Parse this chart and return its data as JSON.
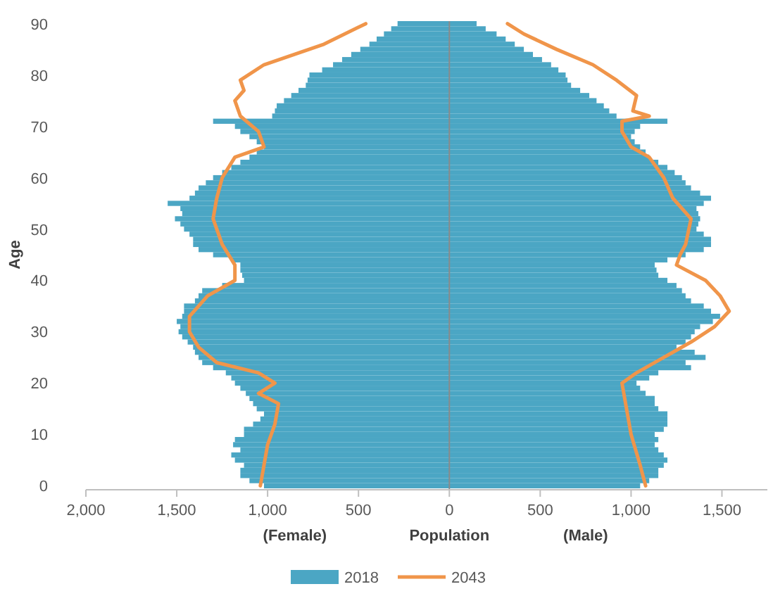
{
  "chart_data": {
    "type": "bar",
    "orientation": "horizontal",
    "ylabel": "Age",
    "xlabel": "Population",
    "annotations": [
      "(Female)",
      "(Male)"
    ],
    "x": [
      0,
      1,
      2,
      3,
      4,
      5,
      6,
      7,
      8,
      9,
      10,
      11,
      12,
      13,
      14,
      15,
      16,
      17,
      18,
      19,
      20,
      21,
      22,
      23,
      24,
      25,
      26,
      27,
      28,
      29,
      30,
      31,
      32,
      33,
      34,
      35,
      36,
      37,
      38,
      39,
      40,
      41,
      42,
      43,
      44,
      45,
      46,
      47,
      48,
      49,
      50,
      51,
      52,
      53,
      54,
      55,
      56,
      57,
      58,
      59,
      60,
      61,
      62,
      63,
      64,
      65,
      66,
      67,
      68,
      69,
      70,
      71,
      72,
      73,
      74,
      75,
      76,
      77,
      78,
      79,
      80,
      81,
      82,
      83,
      84,
      85,
      86,
      87,
      88,
      89,
      90
    ],
    "series": [
      {
        "name": "2018",
        "color": "#4ba6c4",
        "values": [
          -1020,
          -1100,
          -1150,
          -1150,
          -1130,
          -1180,
          -1200,
          -1150,
          -1190,
          -1180,
          -1130,
          -1130,
          -1080,
          -1040,
          -1020,
          -1060,
          -1080,
          -1100,
          -1120,
          -1150,
          -1180,
          -1200,
          -1230,
          -1300,
          -1360,
          -1380,
          -1400,
          -1410,
          -1440,
          -1470,
          -1490,
          -1480,
          -1500,
          -1470,
          -1460,
          -1460,
          -1400,
          -1380,
          -1360,
          -1250,
          -1130,
          -1140,
          -1150,
          -1150,
          -1200,
          -1300,
          -1380,
          -1410,
          -1410,
          -1430,
          -1460,
          -1480,
          -1510,
          -1470,
          -1480,
          -1550,
          -1430,
          -1400,
          -1380,
          -1340,
          -1300,
          -1250,
          -1200,
          -1150,
          -1100,
          -1060,
          -1020,
          -1060,
          -1100,
          -1150,
          -1180,
          -1300,
          -975,
          -960,
          -950,
          -910,
          -870,
          -830,
          -790,
          -780,
          -770,
          -700,
          -640,
          -590,
          -540,
          -490,
          -440,
          -400,
          -360,
          -320,
          -285
        ]
      },
      {
        "color": "#4ba6c4",
        "values": [
          1050,
          1100,
          1150,
          1150,
          1180,
          1200,
          1180,
          1150,
          1130,
          1150,
          1130,
          1180,
          1200,
          1200,
          1200,
          1150,
          1130,
          1130,
          1080,
          1050,
          1030,
          1100,
          1150,
          1330,
          1300,
          1410,
          1350,
          1250,
          1300,
          1330,
          1350,
          1380,
          1450,
          1490,
          1440,
          1400,
          1330,
          1300,
          1280,
          1250,
          1200,
          1150,
          1140,
          1130,
          1200,
          1300,
          1400,
          1440,
          1440,
          1400,
          1360,
          1370,
          1380,
          1370,
          1360,
          1400,
          1440,
          1380,
          1330,
          1300,
          1280,
          1240,
          1200,
          1150,
          1100,
          1080,
          1050,
          1020,
          1000,
          1020,
          1050,
          1200,
          920,
          880,
          850,
          810,
          770,
          720,
          670,
          650,
          640,
          600,
          560,
          510,
          460,
          410,
          360,
          310,
          260,
          200,
          150
        ]
      },
      {
        "name": "2043",
        "type": "line",
        "color": "#f0954a",
        "x": [
          0,
          4,
          8,
          12,
          16,
          18,
          20,
          22,
          24,
          27,
          30,
          33,
          37,
          40,
          43,
          47,
          52,
          56,
          60,
          64,
          66,
          69,
          72,
          75,
          77,
          79,
          82,
          86,
          90
        ],
        "values": [
          -1040,
          -1020,
          -1000,
          -960,
          -940,
          -1050,
          -960,
          -1050,
          -1280,
          -1380,
          -1430,
          -1430,
          -1330,
          -1180,
          -1180,
          -1250,
          -1300,
          -1280,
          -1250,
          -1180,
          -1020,
          -1050,
          -1150,
          -1180,
          -1130,
          -1150,
          -1020,
          -690,
          -460
        ]
      },
      {
        "type": "line",
        "color": "#f0954a",
        "x": [
          0,
          4,
          10,
          16,
          20,
          22,
          25,
          28,
          31,
          34,
          37,
          40,
          43,
          45,
          47,
          52,
          56,
          60,
          64,
          66,
          69,
          71,
          72,
          73,
          76,
          79,
          82,
          85,
          88,
          90
        ],
        "values": [
          1080,
          1050,
          1000,
          970,
          950,
          1030,
          1180,
          1330,
          1460,
          1540,
          1490,
          1410,
          1250,
          1270,
          1300,
          1330,
          1230,
          1180,
          1100,
          1000,
          950,
          950,
          1100,
          1010,
          1030,
          920,
          790,
          590,
          410,
          320
        ]
      }
    ],
    "xlim": [
      -2000,
      1750
    ],
    "xticks": [
      {
        "value": -2000,
        "label": "2,000"
      },
      {
        "value": -1500,
        "label": "1,500"
      },
      {
        "value": -1000,
        "label": "1,000"
      },
      {
        "value": -500,
        "label": "500"
      },
      0,
      500,
      {
        "value": 1000,
        "label": "1,000"
      },
      {
        "value": 1500,
        "label": "1,500"
      }
    ],
    "ylim": [
      -0.5,
      90.5
    ],
    "yticks": [
      0,
      10,
      20,
      30,
      40,
      50,
      60,
      70,
      80,
      90
    ],
    "stacked": true,
    "ref_lines": [
      {
        "axis": "x",
        "value": 0,
        "color": "#8a8a8a"
      }
    ],
    "grid": false,
    "legend": "bottom"
  }
}
